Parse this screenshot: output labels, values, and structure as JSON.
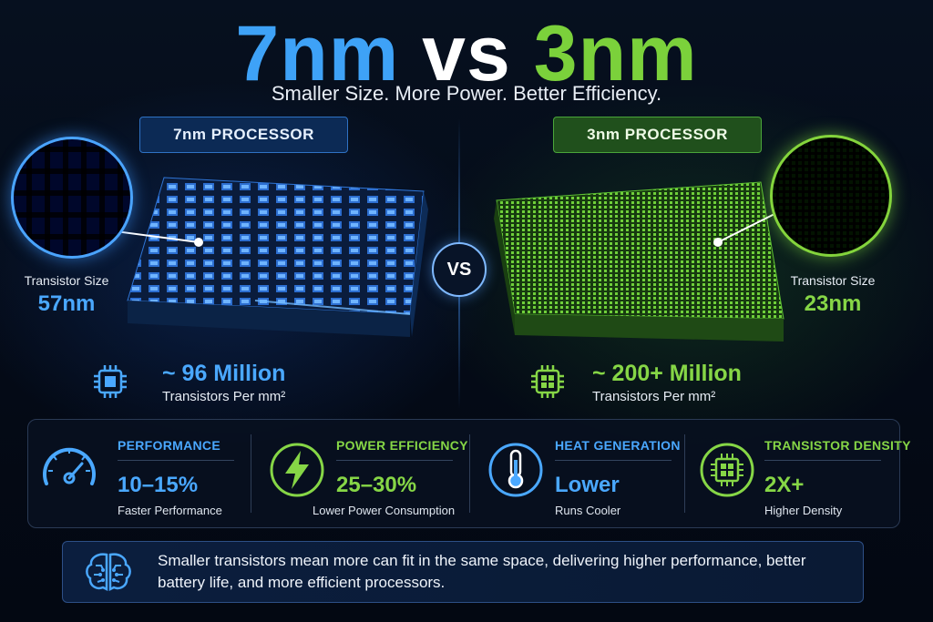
{
  "header": {
    "title_left": "7nm",
    "title_mid": "vs",
    "title_right": "3nm",
    "subtitle": "Smaller Size. More Power. Better Efficiency."
  },
  "left": {
    "label": "7nm PROCESSOR",
    "size_label": "Transistor Size",
    "size_value": "57nm",
    "count": "~ 96 Million",
    "count_unit": "Transistors Per mm²"
  },
  "right": {
    "label": "3nm PROCESSOR",
    "size_label": "Transistor Size",
    "size_value": "23nm",
    "count": "~ 200+ Million",
    "count_unit": "Transistors Per mm²"
  },
  "vs_badge": "VS",
  "metrics": [
    {
      "title": "PERFORMANCE",
      "value": "10–15%",
      "desc": "Faster Performance",
      "color": "#4aa8ff",
      "icon": "speedometer-icon"
    },
    {
      "title": "POWER EFFICIENCY",
      "value": "25–30%",
      "desc": "Lower Power Consumption",
      "color": "#86d646",
      "icon": "lightning-icon"
    },
    {
      "title": "HEAT GENERATION",
      "value": "Lower",
      "desc": "Runs Cooler",
      "color": "#4aa8ff",
      "icon": "thermometer-icon"
    },
    {
      "title": "TRANSISTOR DENSITY",
      "value": "2X+",
      "desc": "Higher Density",
      "color": "#86d646",
      "icon": "chip-icon"
    }
  ],
  "footer": {
    "text": "Smaller transistors mean more can fit in the same space, delivering higher performance, better battery life, and more efficient processors.",
    "icon": "brain-circuit-icon"
  },
  "colors": {
    "blue": "#3ea2f7",
    "green": "#7bd13b"
  }
}
